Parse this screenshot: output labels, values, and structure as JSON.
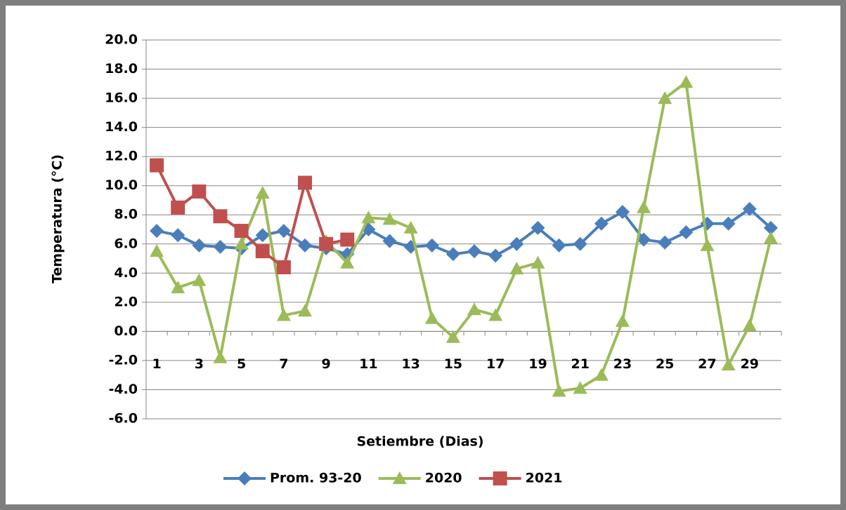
{
  "chart_data": {
    "type": "line",
    "x_label": "Setiembre  (Dias)",
    "y_label": "Temperatura (°C)",
    "categories": [
      1,
      null,
      3,
      null,
      5,
      null,
      7,
      null,
      9,
      null,
      11,
      null,
      13,
      null,
      15,
      null,
      17,
      null,
      19,
      null,
      21,
      null,
      23,
      null,
      25,
      null,
      27,
      null,
      29,
      null
    ],
    "series": [
      {
        "name": "Prom. 93-20",
        "color": "#4a7ebb",
        "marker": "diamond",
        "values": [
          6.9,
          6.6,
          5.9,
          5.8,
          5.7,
          6.6,
          6.9,
          5.9,
          5.7,
          5.3,
          7.0,
          6.2,
          5.8,
          5.9,
          5.3,
          5.5,
          5.2,
          6.0,
          7.1,
          5.9,
          6.0,
          7.4,
          8.2,
          6.3,
          6.1,
          6.8,
          7.4,
          7.4,
          8.4,
          7.1
        ]
      },
      {
        "name": "2020",
        "color": "#9bbb59",
        "marker": "triangle",
        "values": [
          5.5,
          3.0,
          3.5,
          -1.8,
          6.0,
          9.5,
          1.1,
          1.4,
          6.2,
          4.7,
          7.8,
          7.7,
          7.1,
          0.9,
          -0.4,
          1.5,
          1.1,
          4.3,
          4.7,
          -4.1,
          -3.9,
          -3.0,
          0.7,
          8.5,
          16.0,
          17.1,
          5.9,
          -2.3,
          0.4,
          6.4
        ]
      },
      {
        "name": "2021",
        "color": "#c0504d",
        "marker": "square",
        "values": [
          11.4,
          8.5,
          9.6,
          7.9,
          6.9,
          5.5,
          4.4,
          10.2,
          6.0,
          6.3,
          null,
          null,
          null,
          null,
          null,
          null,
          null,
          null,
          null,
          null,
          null,
          null,
          null,
          null,
          null,
          null,
          null,
          null,
          null,
          null
        ]
      }
    ],
    "ylim": [
      -6,
      20
    ],
    "yticks": [
      {
        "value": -6,
        "label": "-6.0"
      },
      {
        "value": -4,
        "label": "-4.0"
      },
      {
        "value": -2,
        "label": "-2.0"
      },
      {
        "value": 0,
        "label": "0.0"
      },
      {
        "value": 2,
        "label": "2.0"
      },
      {
        "value": 4,
        "label": "4.0"
      },
      {
        "value": 6,
        "label": "6.0"
      },
      {
        "value": 8,
        "label": "8.0"
      },
      {
        "value": 10,
        "label": "10.0"
      },
      {
        "value": 12,
        "label": "12.0"
      },
      {
        "value": 14,
        "label": "14.0"
      },
      {
        "value": 16,
        "label": "16.0"
      },
      {
        "value": 18,
        "label": "18.0"
      },
      {
        "value": 20,
        "label": "20.0"
      }
    ],
    "grid": true,
    "legend": "bottom"
  }
}
